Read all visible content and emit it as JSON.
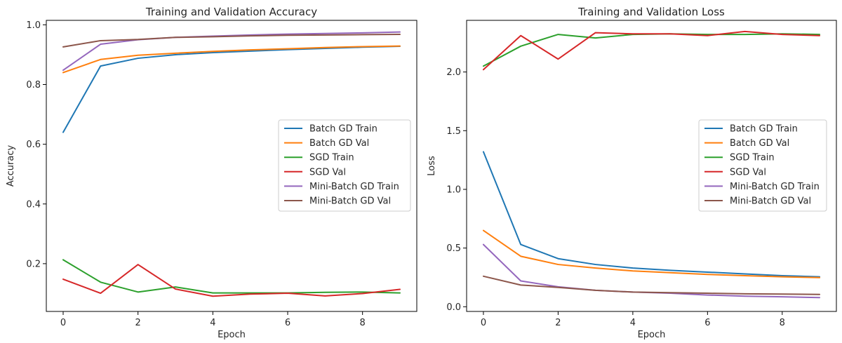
{
  "chart_data": [
    {
      "type": "line",
      "title": "Training and Validation Accuracy",
      "xlabel": "Epoch",
      "ylabel": "Accuracy",
      "xlim": [
        -0.45,
        9.45
      ],
      "ylim": [
        0.04,
        1.015
      ],
      "xticks": [
        0,
        2,
        4,
        6,
        8
      ],
      "yticks": [
        0.2,
        0.4,
        0.6,
        0.8,
        1.0
      ],
      "ytick_labels": [
        "0.2",
        "0.4",
        "0.6",
        "0.8",
        "1.0"
      ],
      "legend": "center-right",
      "grid": false,
      "x": [
        0,
        1,
        2,
        3,
        4,
        5,
        6,
        7,
        8,
        9
      ],
      "series": [
        {
          "name": "Batch GD Train",
          "color": "#1f77b4",
          "values": [
            0.64,
            0.862,
            0.888,
            0.9,
            0.907,
            0.912,
            0.917,
            0.921,
            0.925,
            0.928
          ]
        },
        {
          "name": "Batch GD Val",
          "color": "#ff7f0e",
          "values": [
            0.84,
            0.884,
            0.898,
            0.905,
            0.911,
            0.916,
            0.92,
            0.924,
            0.927,
            0.929
          ]
        },
        {
          "name": "SGD Train",
          "color": "#2ca02c",
          "values": [
            0.213,
            0.138,
            0.105,
            0.122,
            0.102,
            0.102,
            0.102,
            0.104,
            0.105,
            0.102
          ]
        },
        {
          "name": "SGD Val",
          "color": "#d62728",
          "values": [
            0.148,
            0.101,
            0.197,
            0.115,
            0.091,
            0.098,
            0.101,
            0.092,
            0.1,
            0.114
          ]
        },
        {
          "name": "Mini-Batch GD Train",
          "color": "#9467bd",
          "values": [
            0.848,
            0.935,
            0.95,
            0.958,
            0.962,
            0.966,
            0.969,
            0.971,
            0.973,
            0.976
          ]
        },
        {
          "name": "Mini-Batch GD Val",
          "color": "#8c564b",
          "values": [
            0.926,
            0.947,
            0.951,
            0.958,
            0.96,
            0.963,
            0.965,
            0.966,
            0.967,
            0.968
          ]
        }
      ]
    },
    {
      "type": "line",
      "title": "Training and Validation Loss",
      "xlabel": "Epoch",
      "ylabel": "Loss",
      "xlim": [
        -0.45,
        9.45
      ],
      "ylim": [
        -0.04,
        2.44
      ],
      "xticks": [
        0,
        2,
        4,
        6,
        8
      ],
      "yticks": [
        0.0,
        0.5,
        1.0,
        1.5,
        2.0
      ],
      "ytick_labels": [
        "0.0",
        "0.5",
        "1.0",
        "1.5",
        "2.0"
      ],
      "legend": "center-right",
      "grid": false,
      "x": [
        0,
        1,
        2,
        3,
        4,
        5,
        6,
        7,
        8,
        9
      ],
      "series": [
        {
          "name": "Batch GD Train",
          "color": "#1f77b4",
          "values": [
            1.32,
            0.53,
            0.41,
            0.36,
            0.33,
            0.31,
            0.295,
            0.28,
            0.265,
            0.255
          ]
        },
        {
          "name": "Batch GD Val",
          "color": "#ff7f0e",
          "values": [
            0.65,
            0.43,
            0.36,
            0.33,
            0.305,
            0.29,
            0.275,
            0.265,
            0.255,
            0.248
          ]
        },
        {
          "name": "SGD Train",
          "color": "#2ca02c",
          "values": [
            2.05,
            2.22,
            2.32,
            2.29,
            2.32,
            2.325,
            2.32,
            2.32,
            2.325,
            2.32
          ]
        },
        {
          "name": "SGD Val",
          "color": "#d62728",
          "values": [
            2.02,
            2.31,
            2.11,
            2.335,
            2.325,
            2.325,
            2.31,
            2.345,
            2.32,
            2.31
          ]
        },
        {
          "name": "Mini-Batch GD Train",
          "color": "#9467bd",
          "values": [
            0.53,
            0.22,
            0.17,
            0.14,
            0.125,
            0.115,
            0.1,
            0.09,
            0.085,
            0.078
          ]
        },
        {
          "name": "Mini-Batch GD Val",
          "color": "#8c564b",
          "values": [
            0.26,
            0.185,
            0.165,
            0.14,
            0.125,
            0.12,
            0.115,
            0.11,
            0.108,
            0.105
          ]
        }
      ]
    }
  ]
}
